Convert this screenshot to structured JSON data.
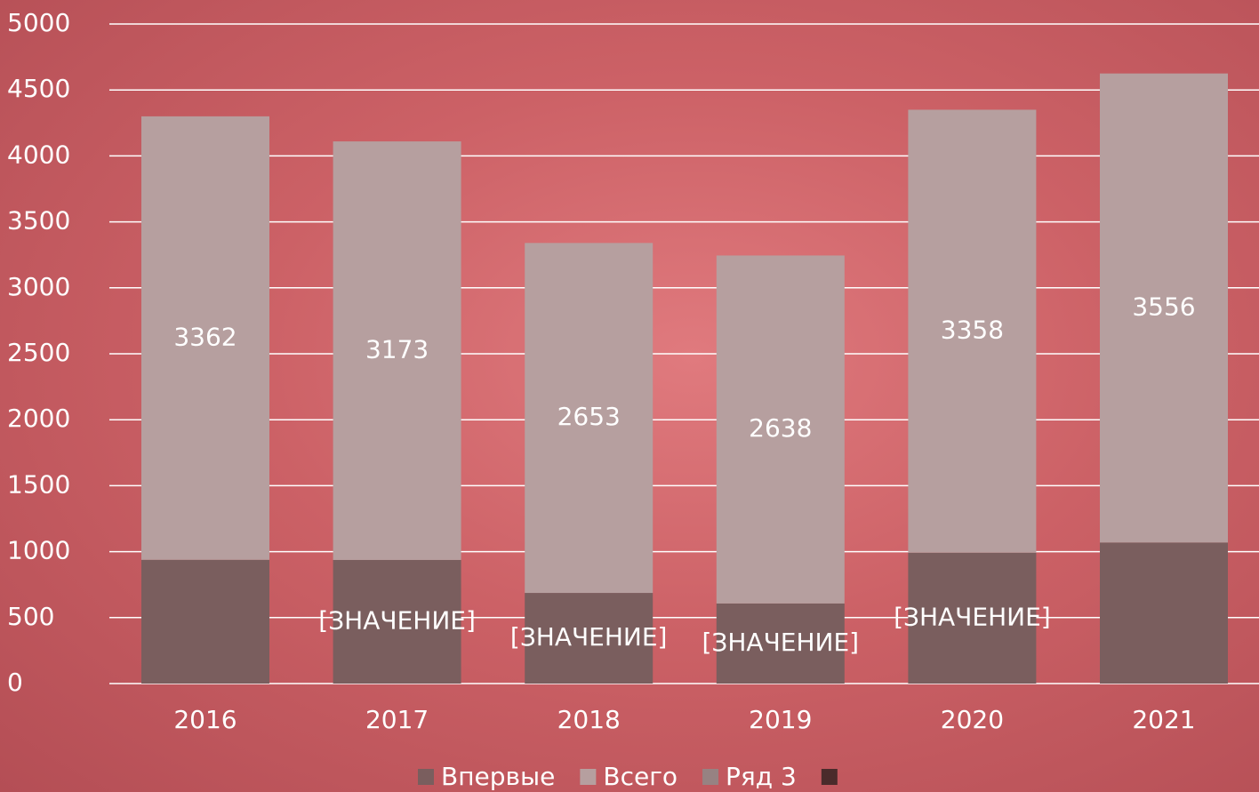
{
  "chart_data": {
    "type": "stacked-bar",
    "categories": [
      "2016",
      "2017",
      "2018",
      "2019",
      "2020",
      "2021"
    ],
    "series": [
      {
        "name": "Впервые",
        "color": "#7a5e5e",
        "values": [
          938,
          937,
          687,
          607,
          992,
          1069
        ],
        "value_labels": [
          null,
          "[ЗНАЧЕНИЕ]",
          "[ЗНАЧЕНИЕ]",
          "[ЗНАЧЕНИЕ]",
          "[ЗНАЧЕНИЕ]",
          null
        ]
      },
      {
        "name": "Всего",
        "color": "#b69f9f",
        "values": [
          3362,
          3173,
          2653,
          2638,
          3358,
          3556
        ]
      },
      {
        "name": "Ряд 3",
        "color": "#978282",
        "values": [
          null,
          null,
          null,
          null,
          null,
          null
        ]
      },
      {
        "name": null,
        "color": "#4a2b2b",
        "values": [
          null,
          null,
          null,
          null,
          null,
          null
        ]
      }
    ],
    "ylim": [
      0,
      5000
    ],
    "yticks": [
      0,
      500,
      1000,
      1500,
      2000,
      2500,
      3000,
      3500,
      4000,
      4500,
      5000
    ],
    "grid": true
  }
}
